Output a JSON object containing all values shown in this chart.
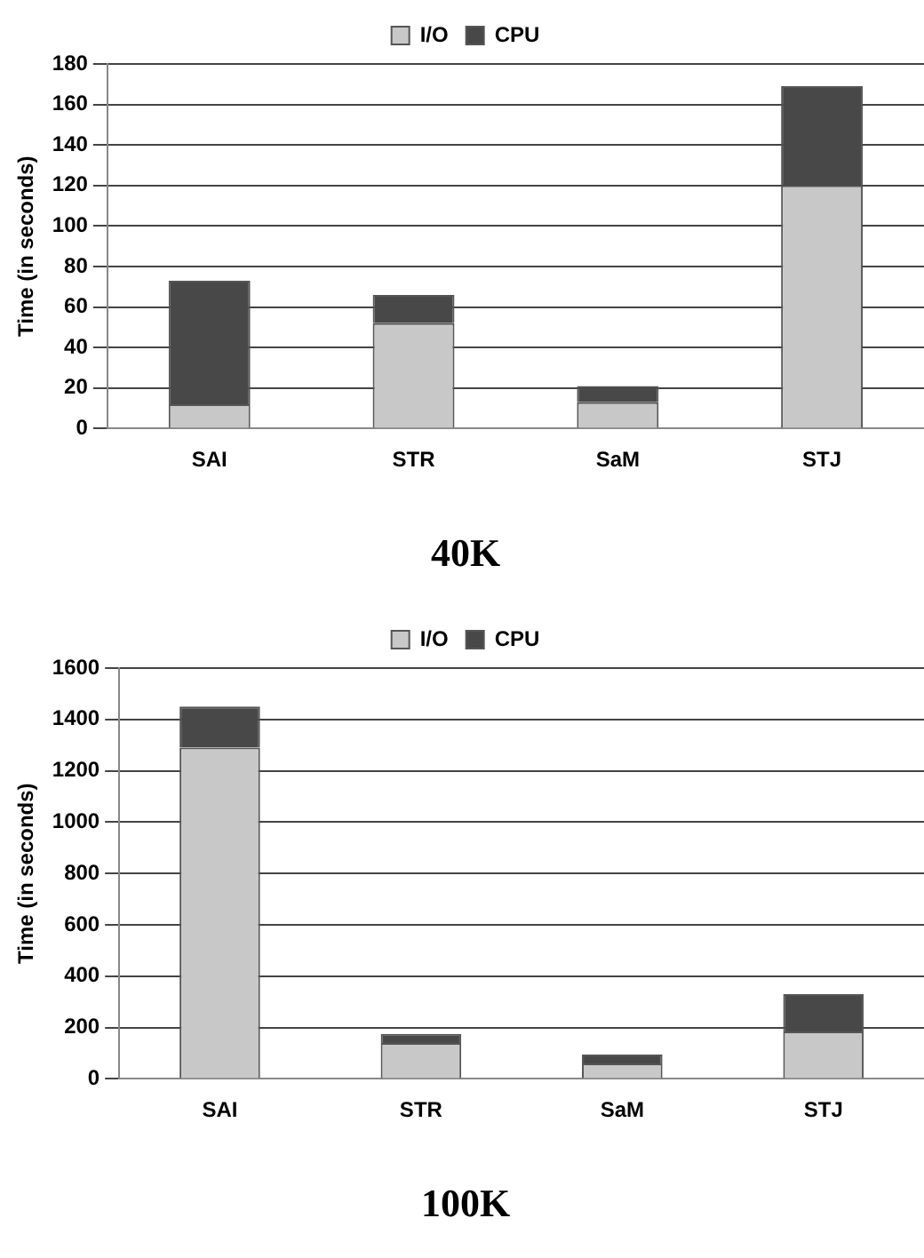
{
  "chart_data": [
    {
      "type": "bar",
      "title": "40K",
      "ylabel": "Time (in seconds)",
      "categories": [
        "SAI",
        "STR",
        "SaM",
        "STJ"
      ],
      "stacked": true,
      "ylim": [
        0,
        180
      ],
      "yticks": [
        0,
        20,
        40,
        60,
        80,
        100,
        120,
        140,
        160,
        180
      ],
      "grid": "y",
      "legend": "top",
      "series": [
        {
          "name": "I/O",
          "color": "#c8c8c8",
          "values": [
            12,
            52,
            13,
            120
          ]
        },
        {
          "name": "CPU",
          "color": "#484848",
          "values": [
            61,
            14,
            8,
            49
          ]
        }
      ]
    },
    {
      "type": "bar",
      "title": "100K",
      "ylabel": "Time (in seconds)",
      "categories": [
        "SAI",
        "STR",
        "SaM",
        "STJ"
      ],
      "stacked": true,
      "ylim": [
        0,
        1600
      ],
      "yticks": [
        0,
        200,
        400,
        600,
        800,
        1000,
        1200,
        1400,
        1600
      ],
      "grid": "y",
      "legend": "top",
      "series": [
        {
          "name": "I/O",
          "color": "#c8c8c8",
          "values": [
            1290,
            140,
            60,
            185
          ]
        },
        {
          "name": "CPU",
          "color": "#484848",
          "values": [
            160,
            35,
            35,
            145
          ]
        }
      ]
    }
  ]
}
